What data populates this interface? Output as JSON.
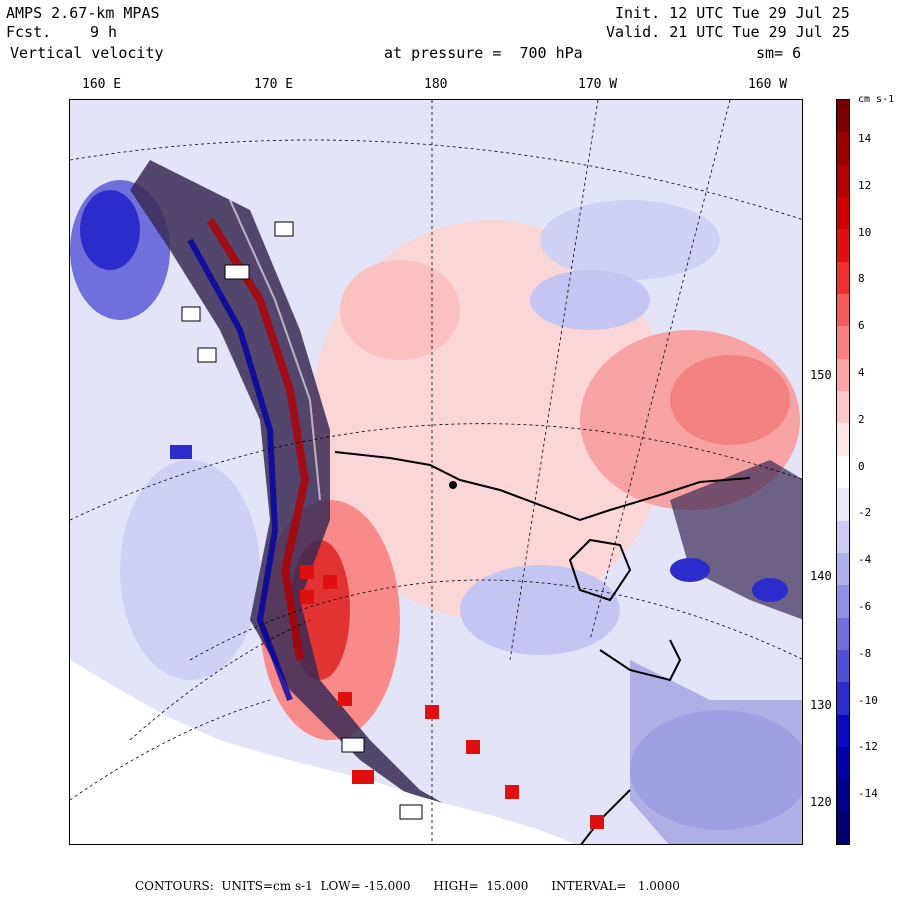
{
  "header": {
    "model": "AMPS 2.67-km MPAS",
    "fcst_label": "Fcst.",
    "fcst_value": "9 h",
    "field": "Vertical velocity",
    "init": "Init. 12 UTC Tue 29 Jul 25",
    "valid": "Valid. 21 UTC Tue 29 Jul 25",
    "level": "at pressure =  700 hPa",
    "smooth": "sm= 6"
  },
  "lon_labels": [
    "160 E",
    "170 E",
    "180",
    "170 W",
    "160 W"
  ],
  "lat_labels": [
    "150 W",
    "140 W",
    "130 W",
    "120 W"
  ],
  "colorbar": {
    "units": "cm s-1",
    "ticks": [
      "14",
      "12",
      "10",
      "8",
      "6",
      "4",
      "2",
      "0",
      "-2",
      "-4",
      "-6",
      "-8",
      "-10",
      "-12",
      "-14"
    ],
    "colors": [
      "#7a0000",
      "#990000",
      "#b30000",
      "#cc0000",
      "#e01010",
      "#f03030",
      "#f55a5a",
      "#f88080",
      "#fba5a5",
      "#fdc8c8",
      "#fde5e5",
      "#ffffff",
      "#e8e8fa",
      "#ccccf5",
      "#b0b0ee",
      "#9090e6",
      "#7070dd",
      "#5050d4",
      "#2c2ccc",
      "#0a0ac0",
      "#0000a5",
      "#00008a",
      "#000070"
    ]
  },
  "footer": {
    "contours_label": "CONTOURS:",
    "units_text": "UNITS=cm s-1",
    "low_text": "LOW= -15.000",
    "high_text": "HIGH=  15.000",
    "interval_text": "INTERVAL=   1.0000"
  }
}
